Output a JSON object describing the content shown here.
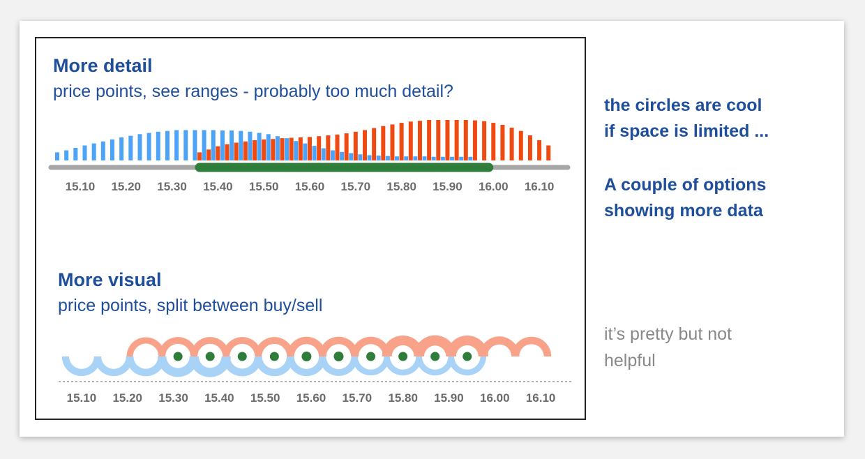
{
  "panel_top": {
    "title": "More detail",
    "subtitle": "price points, see ranges - probably too much detail?"
  },
  "panel_bottom": {
    "title": "More visual",
    "subtitle": "price points, split between buy/sell"
  },
  "notes": {
    "circles_line1": "the circles are cool",
    "circles_line2": "if space is limited ...",
    "options_line1": "A couple of options",
    "options_line2": "showing more data",
    "pretty_line1": "it’s pretty but not",
    "pretty_line2": "helpful"
  },
  "colors": {
    "buy": "#4da3f5",
    "sell": "#f04a13",
    "range": "#2e7d3a",
    "track": "#a7a7a7",
    "buy_light": "#a9d2f7",
    "sell_light": "#f8a289",
    "marker": "#2e7d3a",
    "text_blue": "#1f4e9b",
    "text_grey": "#888888"
  },
  "chart_data": [
    {
      "type": "bar",
      "xlim": [
        15.05,
        16.15
      ],
      "tick_labels": [
        "15.10",
        "15.20",
        "15.30",
        "15.40",
        "15.50",
        "15.60",
        "15.70",
        "15.80",
        "15.90",
        "16.00",
        "16.10"
      ],
      "range_highlight": [
        15.36,
        15.99
      ],
      "series": [
        {
          "x": [
            15.05,
            15.07,
            15.09,
            15.11,
            15.13,
            15.15,
            15.17,
            15.19,
            15.21,
            15.23,
            15.25,
            15.27,
            15.29,
            15.31,
            15.33,
            15.35,
            15.37,
            15.39,
            15.41,
            15.43,
            15.45,
            15.47,
            15.49,
            15.51,
            15.53,
            15.55,
            15.57,
            15.59,
            15.61,
            15.63,
            15.65,
            15.67,
            15.69,
            15.71,
            15.73,
            15.75,
            15.77,
            15.79,
            15.81,
            15.83,
            15.85,
            15.87,
            15.89,
            15.91,
            15.93,
            15.95
          ],
          "values": [
            0.2,
            0.25,
            0.31,
            0.37,
            0.42,
            0.47,
            0.52,
            0.57,
            0.61,
            0.65,
            0.68,
            0.71,
            0.73,
            0.75,
            0.75,
            0.75,
            0.75,
            0.75,
            0.74,
            0.74,
            0.73,
            0.71,
            0.68,
            0.65,
            0.6,
            0.55,
            0.48,
            0.42,
            0.36,
            0.3,
            0.25,
            0.21,
            0.18,
            0.15,
            0.13,
            0.12,
            0.11,
            0.1,
            0.1,
            0.1,
            0.1,
            0.09,
            0.09,
            0.09,
            0.09,
            0.09
          ]
        },
        {
          "x": [
            15.36,
            15.38,
            15.4,
            15.42,
            15.44,
            15.46,
            15.48,
            15.5,
            15.52,
            15.54,
            15.56,
            15.58,
            15.6,
            15.62,
            15.64,
            15.66,
            15.68,
            15.7,
            15.72,
            15.74,
            15.76,
            15.78,
            15.8,
            15.82,
            15.84,
            15.86,
            15.88,
            15.9,
            15.92,
            15.94,
            15.96,
            15.98,
            16.0,
            16.02,
            16.04,
            16.06,
            16.08,
            16.1,
            16.12
          ],
          "values": [
            0.2,
            0.27,
            0.35,
            0.4,
            0.44,
            0.47,
            0.5,
            0.52,
            0.53,
            0.55,
            0.56,
            0.57,
            0.58,
            0.6,
            0.62,
            0.64,
            0.67,
            0.71,
            0.75,
            0.8,
            0.85,
            0.89,
            0.93,
            0.96,
            0.98,
            1.0,
            1.0,
            1.0,
            1.0,
            1.0,
            0.99,
            0.97,
            0.93,
            0.88,
            0.81,
            0.73,
            0.62,
            0.5,
            0.37
          ]
        }
      ]
    },
    {
      "type": "scatter",
      "xlim": [
        15.05,
        16.15
      ],
      "tick_labels": [
        "15.10",
        "15.20",
        "15.30",
        "15.40",
        "15.50",
        "15.60",
        "15.70",
        "15.80",
        "15.90",
        "16.00",
        "16.10"
      ],
      "x": [
        15.1,
        15.17,
        15.24,
        15.31,
        15.38,
        15.45,
        15.52,
        15.59,
        15.66,
        15.73,
        15.8,
        15.87,
        15.94,
        16.01,
        16.08
      ],
      "buy": [
        0.73,
        0.73,
        0.76,
        0.9,
        0.95,
        0.78,
        0.75,
        0.73,
        0.7,
        0.6,
        0.6,
        0.6,
        0.6,
        0,
        0
      ],
      "sell": [
        0,
        0,
        0.65,
        0.7,
        0.7,
        0.7,
        0.7,
        0.75,
        0.75,
        0.75,
        1.0,
        1.05,
        1.0,
        0.82,
        0.76
      ],
      "marker_size": [
        0,
        0,
        0,
        0.5,
        0.5,
        0.5,
        0.5,
        0.6,
        0.6,
        0.5,
        0.5,
        0.5,
        0.5,
        0,
        0
      ]
    }
  ]
}
